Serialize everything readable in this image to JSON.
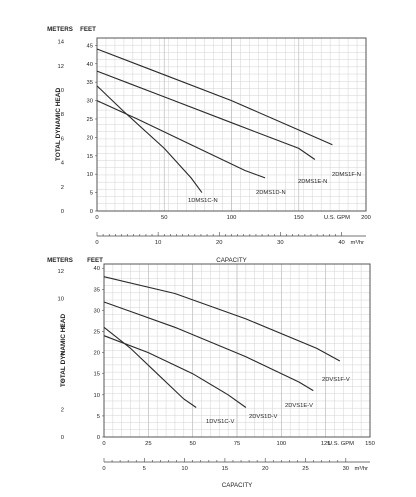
{
  "chart_data": [
    {
      "type": "line",
      "title": "",
      "left_axis_label": "METERS",
      "right_axis_label": "FEET",
      "ylabel": "TOTAL DYNAMIC HEAD",
      "xlabel": "CAPACITY",
      "primary_x_unit": "U.S. GPM",
      "secondary_x_unit": "m³/hr",
      "xlim": [
        0,
        200
      ],
      "ylim_feet": [
        0,
        47
      ],
      "ylim_meters": [
        0,
        14.3
      ],
      "meter_ticks": [
        0,
        2,
        4,
        6,
        8,
        10,
        12,
        14
      ],
      "feet_ticks": [
        0,
        5,
        10,
        15,
        20,
        25,
        30,
        35,
        40,
        45
      ],
      "gpm_ticks": [
        0,
        50,
        100,
        150,
        200
      ],
      "m3hr_ticks": [
        0,
        10,
        20,
        30,
        40
      ],
      "grid": true,
      "series": [
        {
          "name": "1DMS1C-N",
          "points": [
            [
              0,
              34
            ],
            [
              20,
              27
            ],
            [
              50,
              17
            ],
            [
              70,
              9
            ],
            [
              78,
              5
            ]
          ]
        },
        {
          "name": "2DMS1D-N",
          "points": [
            [
              0,
              30
            ],
            [
              30,
              25
            ],
            [
              70,
              18
            ],
            [
              110,
              11
            ],
            [
              125,
              9
            ]
          ]
        },
        {
          "name": "2DMS1E-N",
          "points": [
            [
              0,
              38
            ],
            [
              50,
              31
            ],
            [
              100,
              24
            ],
            [
              150,
              17
            ],
            [
              162,
              14
            ]
          ]
        },
        {
          "name": "2DMS1F-N",
          "points": [
            [
              0,
              44
            ],
            [
              50,
              37
            ],
            [
              100,
              30
            ],
            [
              150,
              22
            ],
            [
              175,
              18
            ]
          ]
        }
      ]
    },
    {
      "type": "line",
      "title": "",
      "left_axis_label": "METERS",
      "right_axis_label": "FEET",
      "ylabel": "TOTAL DYNAMIC HEAD",
      "xlabel": "CAPACITY",
      "primary_x_unit": "U.S. GPM",
      "secondary_x_unit": "m³/hr",
      "xlim": [
        0,
        150
      ],
      "ylim_feet": [
        0,
        41
      ],
      "ylim_meters": [
        0,
        12.5
      ],
      "meter_ticks": [
        0,
        2,
        4,
        6,
        8,
        10,
        12
      ],
      "feet_ticks": [
        0,
        5,
        10,
        15,
        20,
        25,
        30,
        35,
        40
      ],
      "gpm_ticks": [
        0,
        25,
        50,
        75,
        100,
        125,
        150
      ],
      "m3hr_ticks": [
        0,
        5,
        10,
        15,
        20,
        25,
        30
      ],
      "grid": true,
      "series": [
        {
          "name": "1DVS1C-V",
          "points": [
            [
              0,
              26
            ],
            [
              15,
              21
            ],
            [
              30,
              15
            ],
            [
              45,
              9
            ],
            [
              52,
              7
            ]
          ]
        },
        {
          "name": "2DVS1D-V",
          "points": [
            [
              0,
              24
            ],
            [
              25,
              20
            ],
            [
              50,
              15
            ],
            [
              70,
              10
            ],
            [
              80,
              7
            ]
          ]
        },
        {
          "name": "2DVS1E-V",
          "points": [
            [
              0,
              32
            ],
            [
              40,
              26
            ],
            [
              80,
              19
            ],
            [
              110,
              13
            ],
            [
              118,
              11
            ]
          ]
        },
        {
          "name": "2DVS1F-V",
          "points": [
            [
              0,
              38
            ],
            [
              40,
              34
            ],
            [
              80,
              28
            ],
            [
              120,
              21
            ],
            [
              133,
              18
            ]
          ]
        }
      ]
    }
  ]
}
